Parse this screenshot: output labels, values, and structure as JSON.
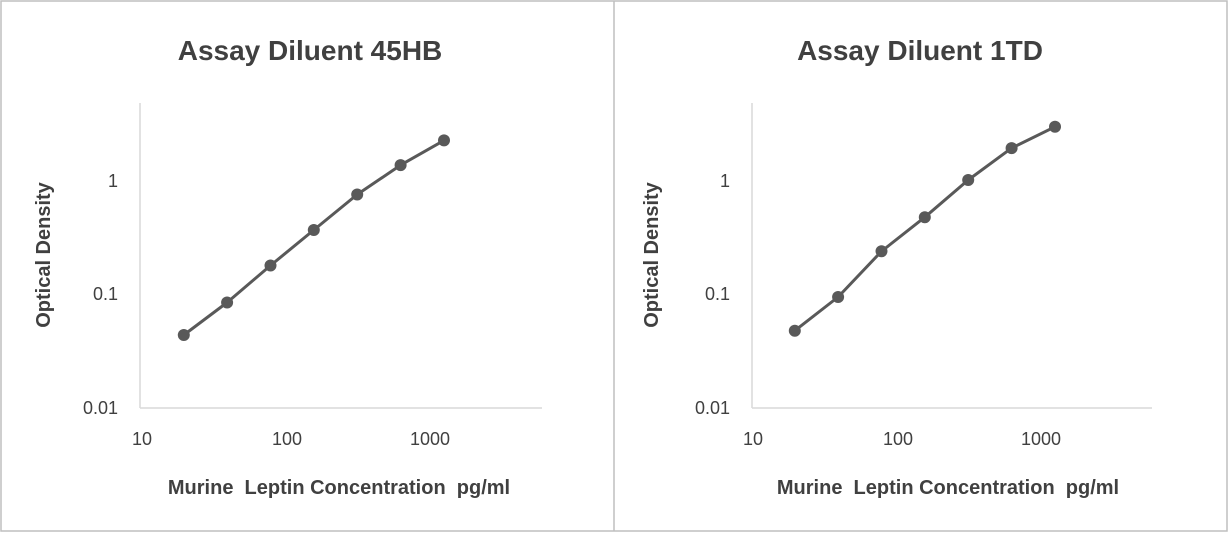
{
  "chart_data": [
    {
      "type": "line",
      "title": "Assay Diluent 45HB",
      "xlabel": "Murine  Leptin Concentration  pg/ml",
      "ylabel": "Optical  Density",
      "xscale": "log",
      "yscale": "log",
      "xlim": [
        10,
        5000
      ],
      "ylim": [
        0.01,
        5
      ],
      "xticks": [
        "10",
        "100",
        "1000"
      ],
      "yticks": [
        "0.01",
        "0.1",
        "1"
      ],
      "grid": false,
      "legend": "none",
      "series": [
        {
          "color": "#595959",
          "x": [
            19.5,
            39,
            78,
            156,
            312,
            625,
            1250
          ],
          "y": [
            0.044,
            0.085,
            0.18,
            0.37,
            0.76,
            1.38,
            2.28
          ]
        }
      ]
    },
    {
      "type": "line",
      "title": "Assay Diluent 1TD",
      "xlabel": "Murine  Leptin Concentration  pg/ml",
      "ylabel": "Optical  Density",
      "xscale": "log",
      "yscale": "log",
      "xlim": [
        10,
        5000
      ],
      "ylim": [
        0.01,
        5
      ],
      "xticks": [
        "10",
        "100",
        "1000"
      ],
      "yticks": [
        "0.01",
        "0.1",
        "1"
      ],
      "grid": false,
      "legend": "none",
      "series": [
        {
          "color": "#595959",
          "x": [
            19.5,
            39,
            78,
            156,
            312,
            625,
            1250
          ],
          "y": [
            0.048,
            0.095,
            0.24,
            0.48,
            1.02,
            1.95,
            3.0
          ]
        }
      ]
    }
  ]
}
